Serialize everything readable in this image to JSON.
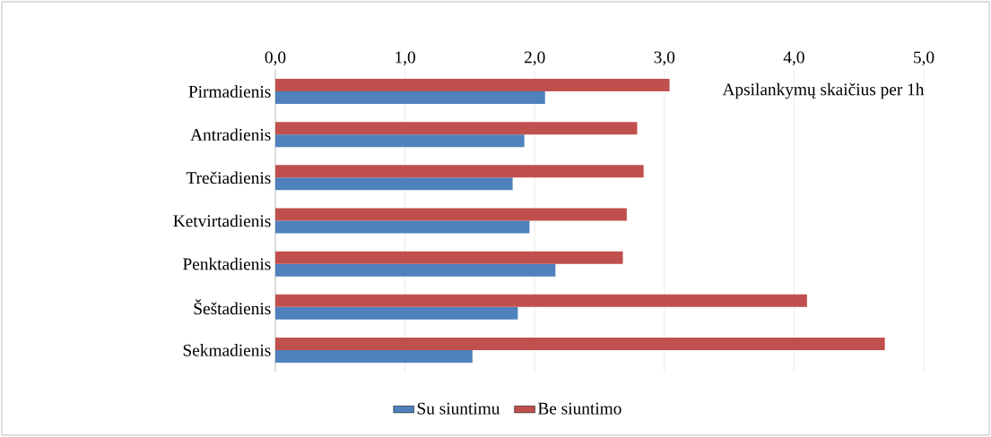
{
  "chart_data": {
    "type": "bar",
    "orientation": "horizontal",
    "xlabel": "Apsilankymų skaičius per 1h",
    "categories": [
      "Pirmadienis",
      "Antradienis",
      "Trečiadienis",
      "Ketvirtadienis",
      "Penktadienis",
      "Šeštadienis",
      "Sekmadienis"
    ],
    "series": [
      {
        "name": "Su siuntimu",
        "color": "#4f81bd",
        "values": [
          2.08,
          1.92,
          1.83,
          1.96,
          2.16,
          1.87,
          1.52
        ]
      },
      {
        "name": "Be siuntimo",
        "color": "#c0504d",
        "values": [
          3.04,
          2.79,
          2.84,
          2.71,
          2.68,
          4.1,
          4.7
        ]
      }
    ],
    "xlim": [
      0,
      5
    ],
    "xticks": [
      {
        "value": 0,
        "label": "0,0"
      },
      {
        "value": 1,
        "label": "1,0"
      },
      {
        "value": 2,
        "label": "2,0"
      },
      {
        "value": 3,
        "label": "3,0"
      },
      {
        "value": 4,
        "label": "4,0"
      },
      {
        "value": 5,
        "label": "5,0"
      }
    ],
    "grid": "x",
    "legend": "bottom"
  }
}
